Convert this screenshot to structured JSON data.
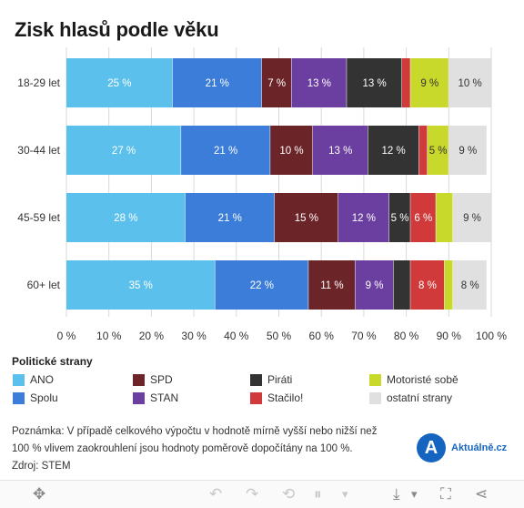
{
  "title": "Zisk hlasů podle věku",
  "chart_data": {
    "type": "bar",
    "orientation": "horizontal",
    "stacked": true,
    "categories": [
      "18-29 let",
      "30-44 let",
      "45-59 let",
      "60+ let"
    ],
    "series": [
      {
        "name": "ANO",
        "color": "#5bc0eb",
        "values": [
          25,
          27,
          28,
          35
        ],
        "labels": [
          "25 %",
          "27 %",
          "28 %",
          "35 %"
        ]
      },
      {
        "name": "Spolu",
        "color": "#3b7dd8",
        "values": [
          21,
          21,
          21,
          22
        ],
        "labels": [
          "21 %",
          "21 %",
          "21 %",
          "22 %"
        ]
      },
      {
        "name": "SPD",
        "color": "#6b2427",
        "values": [
          7,
          10,
          15,
          11
        ],
        "labels": [
          "7 %",
          "10 %",
          "15 %",
          "11 %"
        ]
      },
      {
        "name": "STAN",
        "color": "#6b3fa0",
        "values": [
          13,
          13,
          12,
          9
        ],
        "labels": [
          "13 %",
          "13 %",
          "12 %",
          "9 %"
        ]
      },
      {
        "name": "Piráti",
        "color": "#333333",
        "values": [
          13,
          12,
          5,
          4
        ],
        "labels": [
          "13 %",
          "12 %",
          "5 %",
          ""
        ]
      },
      {
        "name": "Stačilo!",
        "color": "#d13a3a",
        "values": [
          2,
          2,
          6,
          8
        ],
        "labels": [
          "",
          "",
          "6 %",
          "8 %"
        ]
      },
      {
        "name": "Motoristé sobě",
        "color": "#c8d92b",
        "values": [
          9,
          5,
          4,
          2
        ],
        "labels": [
          "9 %",
          "5 %",
          "",
          ""
        ]
      },
      {
        "name": "ostatní strany",
        "color": "#e0e0e0",
        "values": [
          10,
          9,
          9,
          8
        ],
        "labels": [
          "10 %",
          "9 %",
          "9 %",
          "8 %"
        ]
      }
    ],
    "xlim": [
      0,
      100
    ],
    "xticks": [
      "0 %",
      "10 %",
      "20 %",
      "30 %",
      "40 %",
      "50 %",
      "60 %",
      "70 %",
      "80 %",
      "90 %",
      "100 %"
    ],
    "grid": true,
    "legend_title": "Politické strany",
    "legend_position": "bottom"
  },
  "note_lines": [
    "Poznámka: V případě celkového výpočtu v hodnotě mírně vyšší nebo nižší než",
    "100 % vlivem zaokrouhlení jsou hodnoty poměrově dopočítány na 100 %.",
    "Zdroj: STEM"
  ],
  "logo": {
    "mark": "A",
    "text": "Aktuálně.cz"
  },
  "toolbar": {
    "icons": [
      "move-icon",
      "undo-icon",
      "redo-icon",
      "revert-icon",
      "pause-icon",
      "dropdown-icon",
      "download-icon",
      "fullscreen-icon",
      "share-icon"
    ],
    "glyphs": {
      "move": "✥",
      "undo": "↶",
      "redo": "↷",
      "revert": "⟲",
      "pause": "⏸",
      "dropdown": "▾",
      "download": "⤓",
      "fullscreen": "⛶",
      "share": "⋖"
    }
  }
}
